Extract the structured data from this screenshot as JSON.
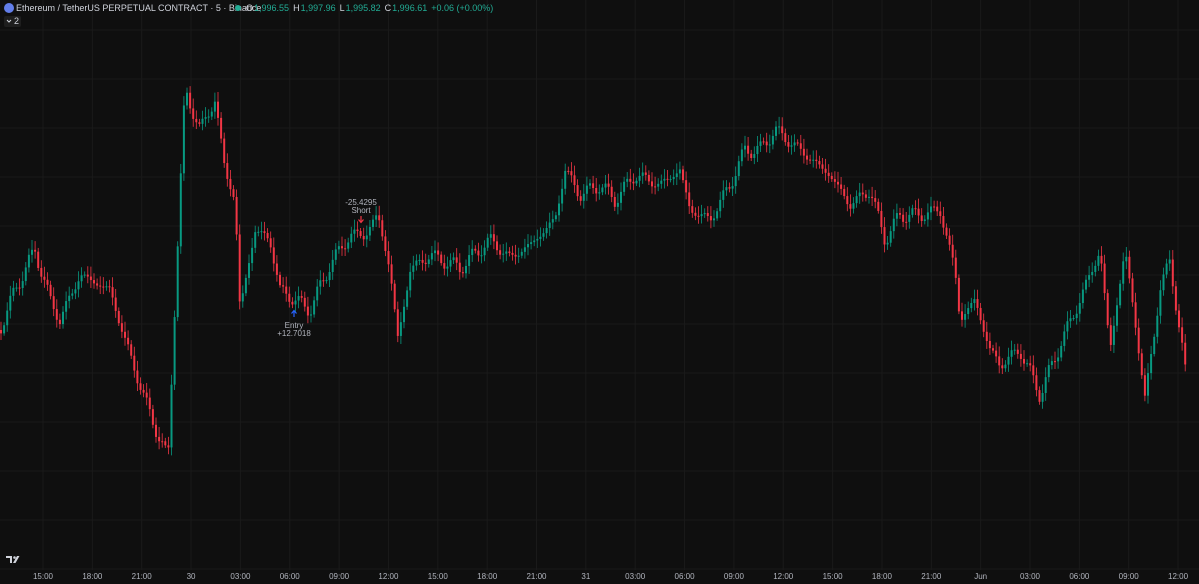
{
  "header": {
    "symbol": "Ethereum / TetherUS PERPETUAL CONTRACT · 5 · Binance",
    "ohlc": [
      {
        "label": "O",
        "value": "1,996.55"
      },
      {
        "label": "H",
        "value": "1,997.96"
      },
      {
        "label": "L",
        "value": "1,995.82"
      },
      {
        "label": "C",
        "value": "1,996.61"
      }
    ],
    "change": "+0.06 (+0.00%)",
    "indicators": "2"
  },
  "annotations": {
    "short_value": "-25.4295",
    "short_label": "Short",
    "entry_label": "Entry",
    "entry_value": "+12.7018"
  },
  "time_axis": [
    "15:00",
    "18:00",
    "21:00",
    "30",
    "03:00",
    "06:00",
    "09:00",
    "12:00",
    "15:00",
    "18:00",
    "21:00",
    "31",
    "03:00",
    "06:00",
    "09:00",
    "12:00",
    "15:00",
    "18:00",
    "21:00",
    "Jun",
    "03:00",
    "06:00",
    "09:00",
    "12:00"
  ]
}
